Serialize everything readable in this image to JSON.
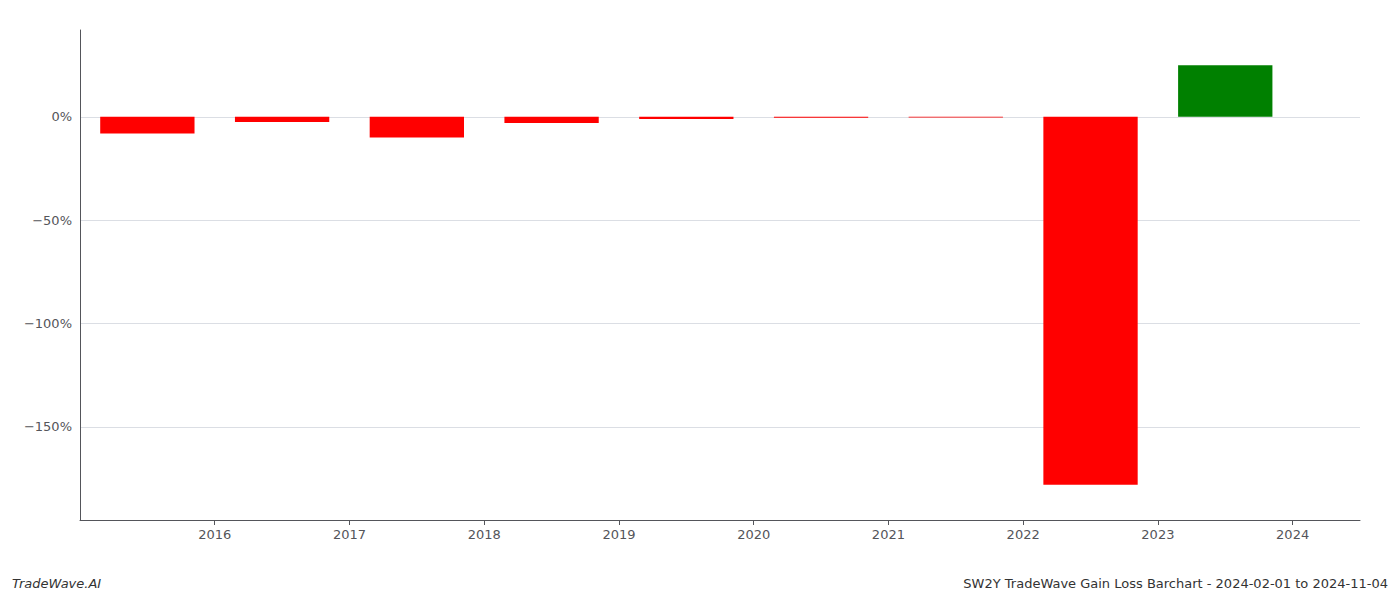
{
  "chart_data": {
    "type": "bar",
    "x": [
      2015.5,
      2016.5,
      2017.5,
      2018.5,
      2019.5,
      2020.5,
      2021.5,
      2022.5,
      2023.5
    ],
    "values": [
      -8.0,
      -2.5,
      -10.0,
      -3.0,
      -1.0,
      -0.5,
      -0.3,
      -178.0,
      25.0
    ],
    "colors": [
      "#ff0000",
      "#ff0000",
      "#ff0000",
      "#ff0000",
      "#ff0000",
      "#ff0000",
      "#ff0000",
      "#ff0000",
      "#008000"
    ],
    "xlim": [
      2015.0,
      2024.5
    ],
    "xticks": [
      2016,
      2017,
      2018,
      2019,
      2020,
      2021,
      2022,
      2023,
      2024
    ],
    "ylim": [
      -195,
      42
    ],
    "yticks": [
      {
        "value": 0,
        "label": "0%"
      },
      {
        "value": -50,
        "label": "−50%"
      },
      {
        "value": -100,
        "label": "−100%"
      },
      {
        "value": -150,
        "label": "−150%"
      }
    ],
    "grid": true,
    "annotations": [
      "TradeWave.AI",
      "SW2Y TradeWave Gain Loss Barchart - 2024-02-01 to 2024-11-04"
    ]
  }
}
